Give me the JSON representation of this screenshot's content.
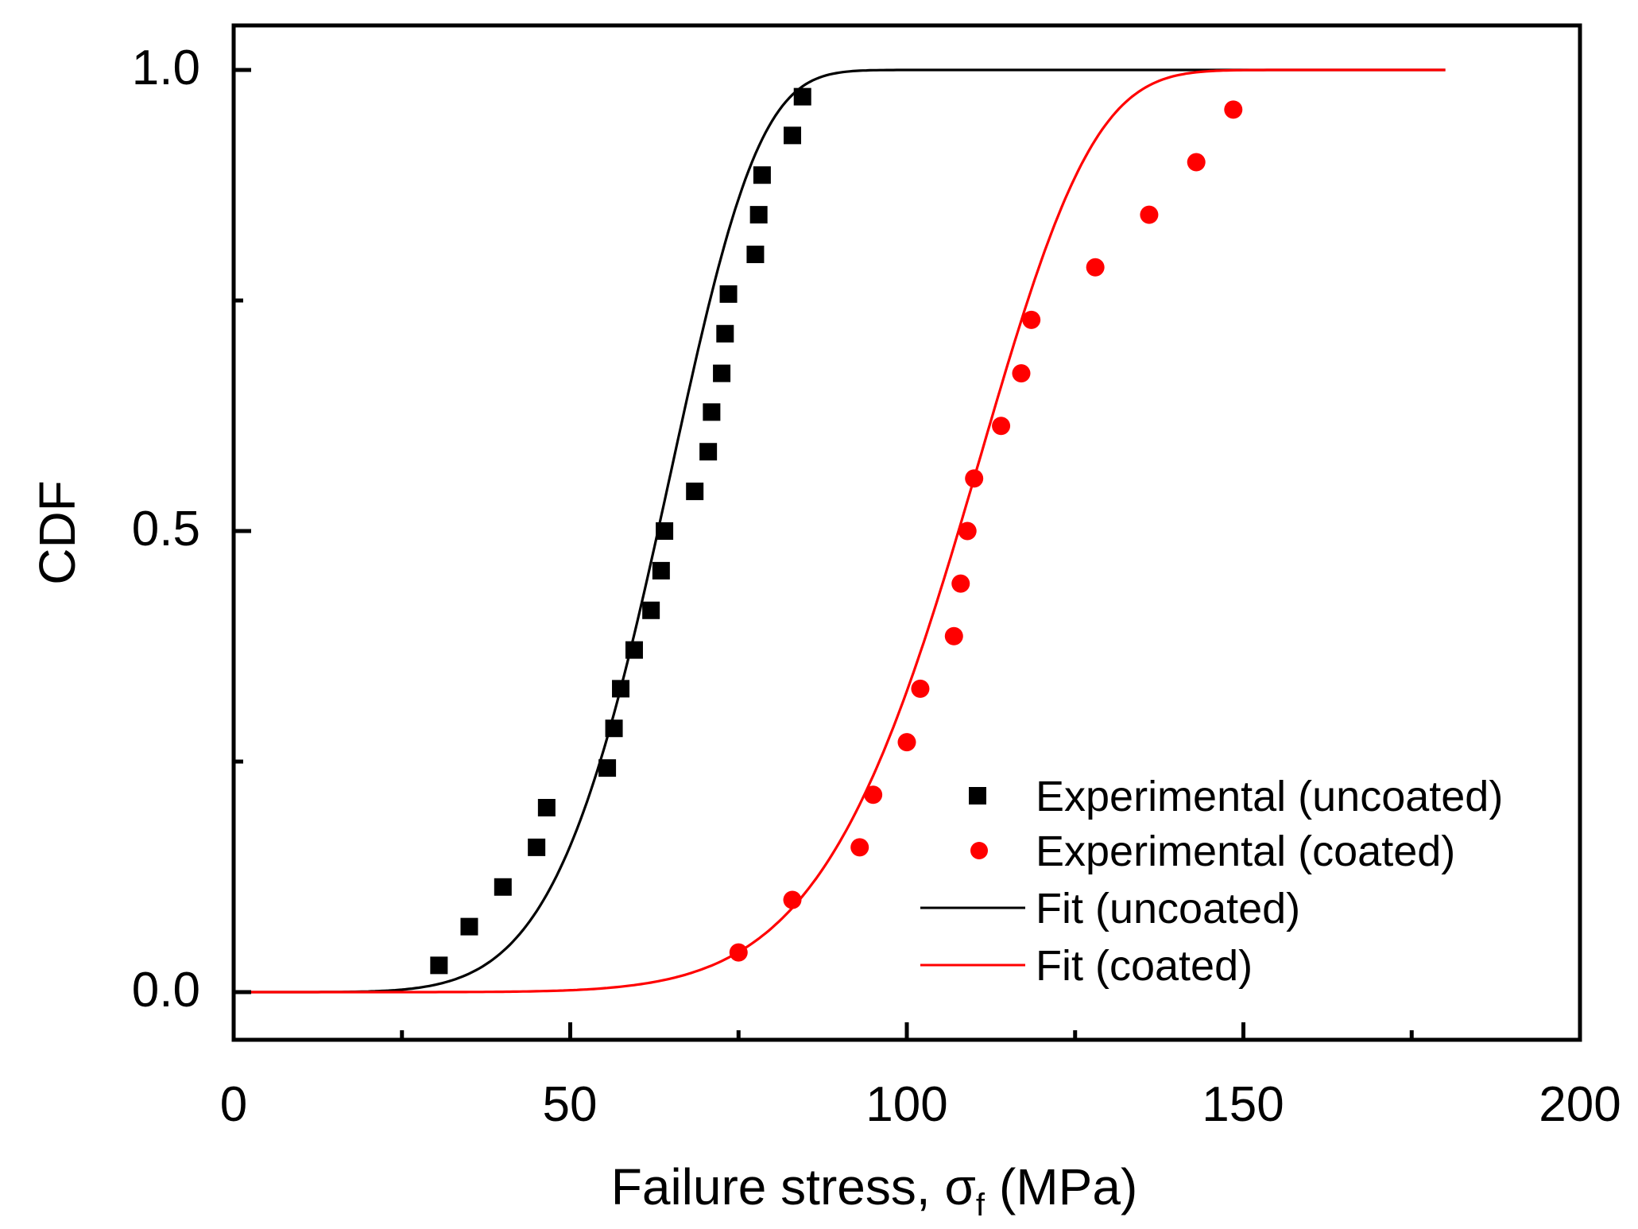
{
  "chart_data": {
    "type": "scatter",
    "title": "",
    "xlabel": "Failure stress, σ",
    "xlabel_subscript": "f",
    "xlabel_unit": "(MPa)",
    "ylabel": "CDF",
    "xlim": [
      0,
      200
    ],
    "ylim": [
      -0.05,
      1.05
    ],
    "x_ticks": [
      0,
      50,
      100,
      150,
      200
    ],
    "x_tick_labels": [
      "0",
      "50",
      "100",
      "150",
      "200"
    ],
    "x_minor_ticks": [
      25,
      75,
      125,
      175
    ],
    "y_ticks": [
      0.0,
      0.5,
      1.0
    ],
    "y_tick_labels": [
      "0.0",
      "0.5",
      "1.0"
    ],
    "y_minor_ticks": [
      0.25,
      0.75
    ],
    "grid": false,
    "legend_position": "bottom-right",
    "series": [
      {
        "name": "Experimental (uncoated)",
        "kind": "scatter",
        "marker": "square",
        "color": "#000000",
        "points": [
          [
            30.5,
            0.029
          ],
          [
            35.0,
            0.071
          ],
          [
            40.0,
            0.114
          ],
          [
            45.0,
            0.157
          ],
          [
            46.5,
            0.2
          ],
          [
            55.5,
            0.243
          ],
          [
            56.5,
            0.286
          ],
          [
            57.5,
            0.329
          ],
          [
            59.5,
            0.371
          ],
          [
            62.0,
            0.414
          ],
          [
            63.5,
            0.457
          ],
          [
            64.0,
            0.5
          ],
          [
            68.5,
            0.543
          ],
          [
            70.5,
            0.586
          ],
          [
            71.0,
            0.629
          ],
          [
            72.5,
            0.671
          ],
          [
            73.0,
            0.714
          ],
          [
            73.5,
            0.757
          ],
          [
            77.5,
            0.8
          ],
          [
            78.0,
            0.843
          ],
          [
            78.5,
            0.886
          ],
          [
            83.0,
            0.929
          ],
          [
            84.5,
            0.971
          ]
        ]
      },
      {
        "name": "Experimental (coated)",
        "kind": "scatter",
        "marker": "circle",
        "color": "#ff0000",
        "points": [
          [
            75.0,
            0.043
          ],
          [
            83.0,
            0.1
          ],
          [
            93.0,
            0.157
          ],
          [
            95.0,
            0.214
          ],
          [
            100.0,
            0.271
          ],
          [
            102.0,
            0.329
          ],
          [
            107.0,
            0.386
          ],
          [
            108.0,
            0.443
          ],
          [
            109.0,
            0.5
          ],
          [
            110.0,
            0.557
          ],
          [
            114.0,
            0.614
          ],
          [
            117.0,
            0.671
          ],
          [
            118.5,
            0.729
          ],
          [
            128.0,
            0.786
          ],
          [
            136.0,
            0.843
          ],
          [
            143.0,
            0.9
          ],
          [
            148.5,
            0.957
          ]
        ]
      },
      {
        "name": "Fit (uncoated)",
        "kind": "line",
        "color": "#000000",
        "model": "weibull",
        "scale": 67.0,
        "shape": 6.0,
        "x_range": [
          0,
          180
        ]
      },
      {
        "name": "Fit (coated)",
        "kind": "line",
        "color": "#ff0000",
        "model": "weibull",
        "scale": 113.0,
        "shape": 7.6,
        "x_range": [
          0,
          180
        ]
      }
    ]
  }
}
